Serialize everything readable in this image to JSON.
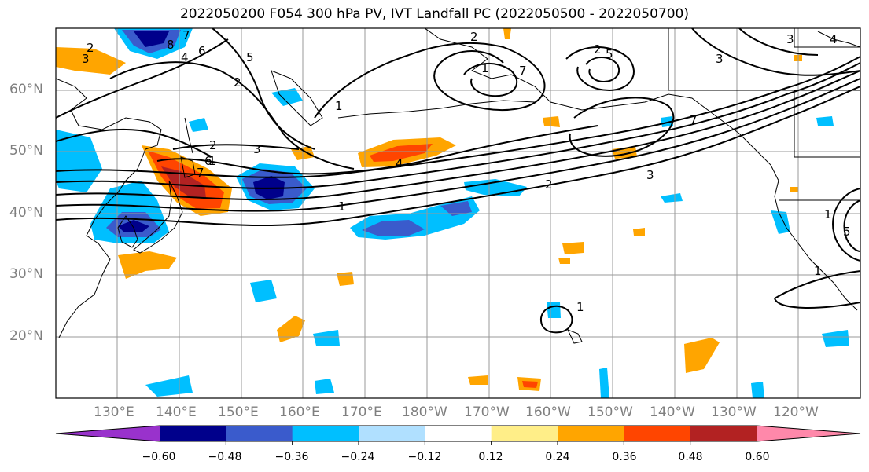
{
  "title": "2022050200 F054 300 hPa PV, IVT Landfall PC (2022050500 - 2022050700)",
  "lat_ticks": [
    "60°N",
    "50°N",
    "40°N",
    "30°N",
    "20°N"
  ],
  "lon_ticks": [
    "130°E",
    "140°E",
    "150°E",
    "160°E",
    "170°E",
    "180°W",
    "170°W",
    "160°W",
    "150°W",
    "140°W",
    "130°W",
    "120°W"
  ],
  "colorbar": {
    "colors": [
      "#9932cc",
      "#00008b",
      "#3a5bcc",
      "#00bfff",
      "#b0e0ff",
      "#ffffff",
      "#ffee88",
      "#ffa500",
      "#ff4500",
      "#b22222",
      "#ff88aa"
    ],
    "labels": [
      "−0.60",
      "−0.48",
      "−0.36",
      "−0.24",
      "−0.12",
      "0.12",
      "0.24",
      "0.36",
      "0.48",
      "0.60"
    ]
  },
  "contour_labels": [
    "2",
    "3",
    "4",
    "5",
    "6",
    "7",
    "8",
    "1",
    "2",
    "3",
    "7",
    "1",
    "2",
    "2",
    "3",
    "4",
    "5",
    "2",
    "3",
    "7",
    "1",
    "1",
    "1",
    "1",
    "2",
    "3",
    "4",
    "5",
    "6",
    "7",
    "1"
  ]
}
